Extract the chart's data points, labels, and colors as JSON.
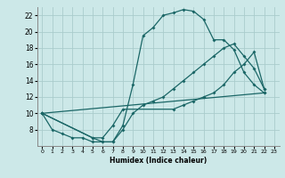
{
  "bg_color": "#cce8e8",
  "grid_color": "#aacccc",
  "line_color": "#1a6666",
  "xlabel": "Humidex (Indice chaleur)",
  "xlim": [
    -0.5,
    23.5
  ],
  "ylim": [
    6,
    23
  ],
  "xticks": [
    0,
    1,
    2,
    3,
    4,
    5,
    6,
    7,
    8,
    9,
    10,
    11,
    12,
    13,
    14,
    15,
    16,
    17,
    18,
    19,
    20,
    21,
    22,
    23
  ],
  "yticks": [
    8,
    10,
    12,
    14,
    16,
    18,
    20,
    22
  ],
  "curve1_x": [
    0,
    1,
    2,
    3,
    4,
    5,
    6,
    7,
    8,
    9,
    10,
    11,
    12,
    13,
    14,
    15,
    16,
    17,
    18,
    19,
    20,
    21,
    22
  ],
  "curve1_y": [
    10,
    8,
    7.5,
    7,
    7,
    6.5,
    6.5,
    6.5,
    8.5,
    13.5,
    19.5,
    20.5,
    22,
    22.3,
    22.7,
    22.5,
    21.5,
    19.0,
    19.0,
    17.8,
    15.0,
    13.5,
    12.5
  ],
  "curve2_x": [
    0,
    5,
    6,
    7,
    8,
    13,
    14,
    15,
    16,
    17,
    18,
    19,
    20,
    21,
    22
  ],
  "curve2_y": [
    10,
    7,
    7,
    8.5,
    10.5,
    10.5,
    11,
    11.5,
    12,
    12.5,
    13.5,
    15,
    16,
    17.5,
    13
  ],
  "line3_x": [
    0,
    22
  ],
  "line3_y": [
    10,
    12.5
  ],
  "line4_x": [
    0,
    5,
    6,
    7,
    8,
    9,
    10,
    11,
    12,
    13,
    14,
    15,
    16,
    17,
    18,
    19,
    20,
    21,
    22
  ],
  "line4_y": [
    10,
    7,
    6.5,
    6.5,
    8,
    10,
    11,
    11.5,
    12,
    13,
    14,
    15,
    16,
    17,
    18,
    18.5,
    17,
    15.5,
    13
  ]
}
